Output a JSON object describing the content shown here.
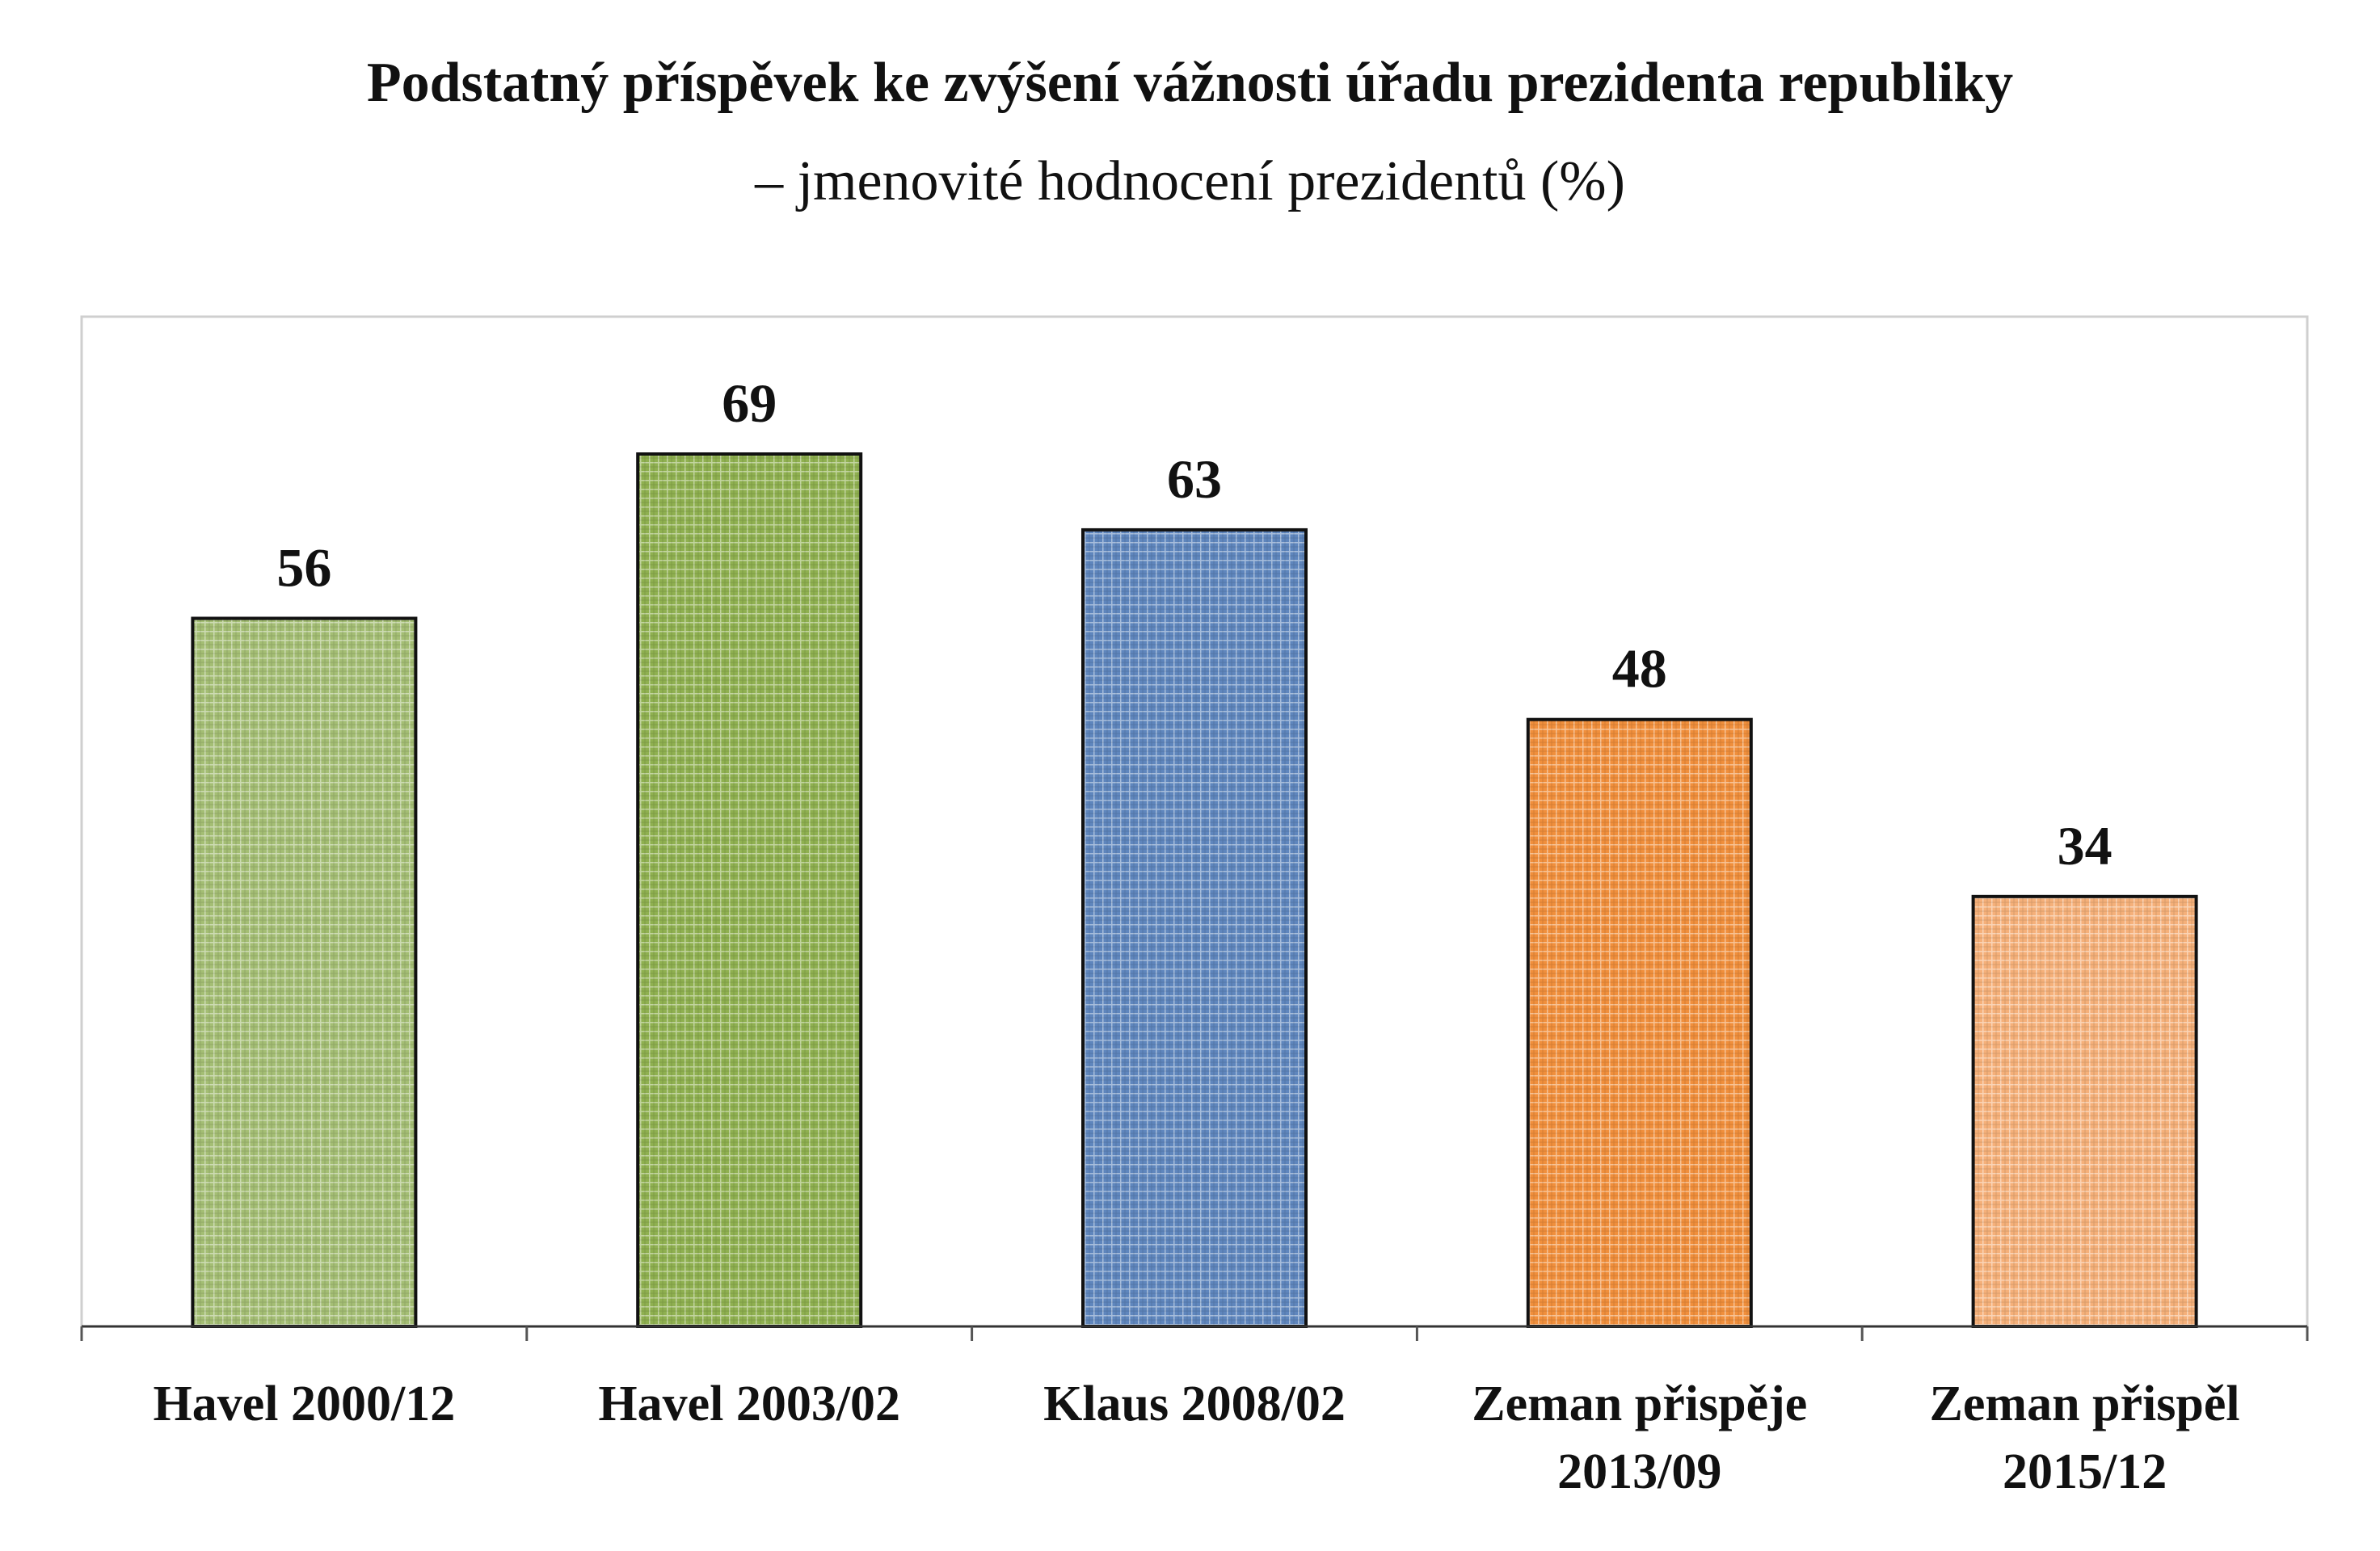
{
  "chart_data": {
    "type": "bar",
    "title": "Podstatný příspěvek ke zvýšení vážnosti úřadu prezidenta republiky",
    "subtitle": "– jmenovité hodnocení prezidentů (%)",
    "categories": [
      [
        "Havel 2000/12"
      ],
      [
        "Havel 2003/02"
      ],
      [
        "Klaus 2008/02"
      ],
      [
        "Zeman přispěje",
        "2013/09"
      ],
      [
        "Zeman přispěl",
        "2015/12"
      ]
    ],
    "values": [
      56,
      69,
      63,
      48,
      34
    ],
    "colors": [
      "#a4be74",
      "#8fb050",
      "#5f86bd",
      "#f08f3c",
      "#f5b07a"
    ],
    "data_labels": [
      "56",
      "69",
      "63",
      "48",
      "34"
    ],
    "ylim": [
      0,
      80
    ],
    "grid": false,
    "legend": "none"
  }
}
